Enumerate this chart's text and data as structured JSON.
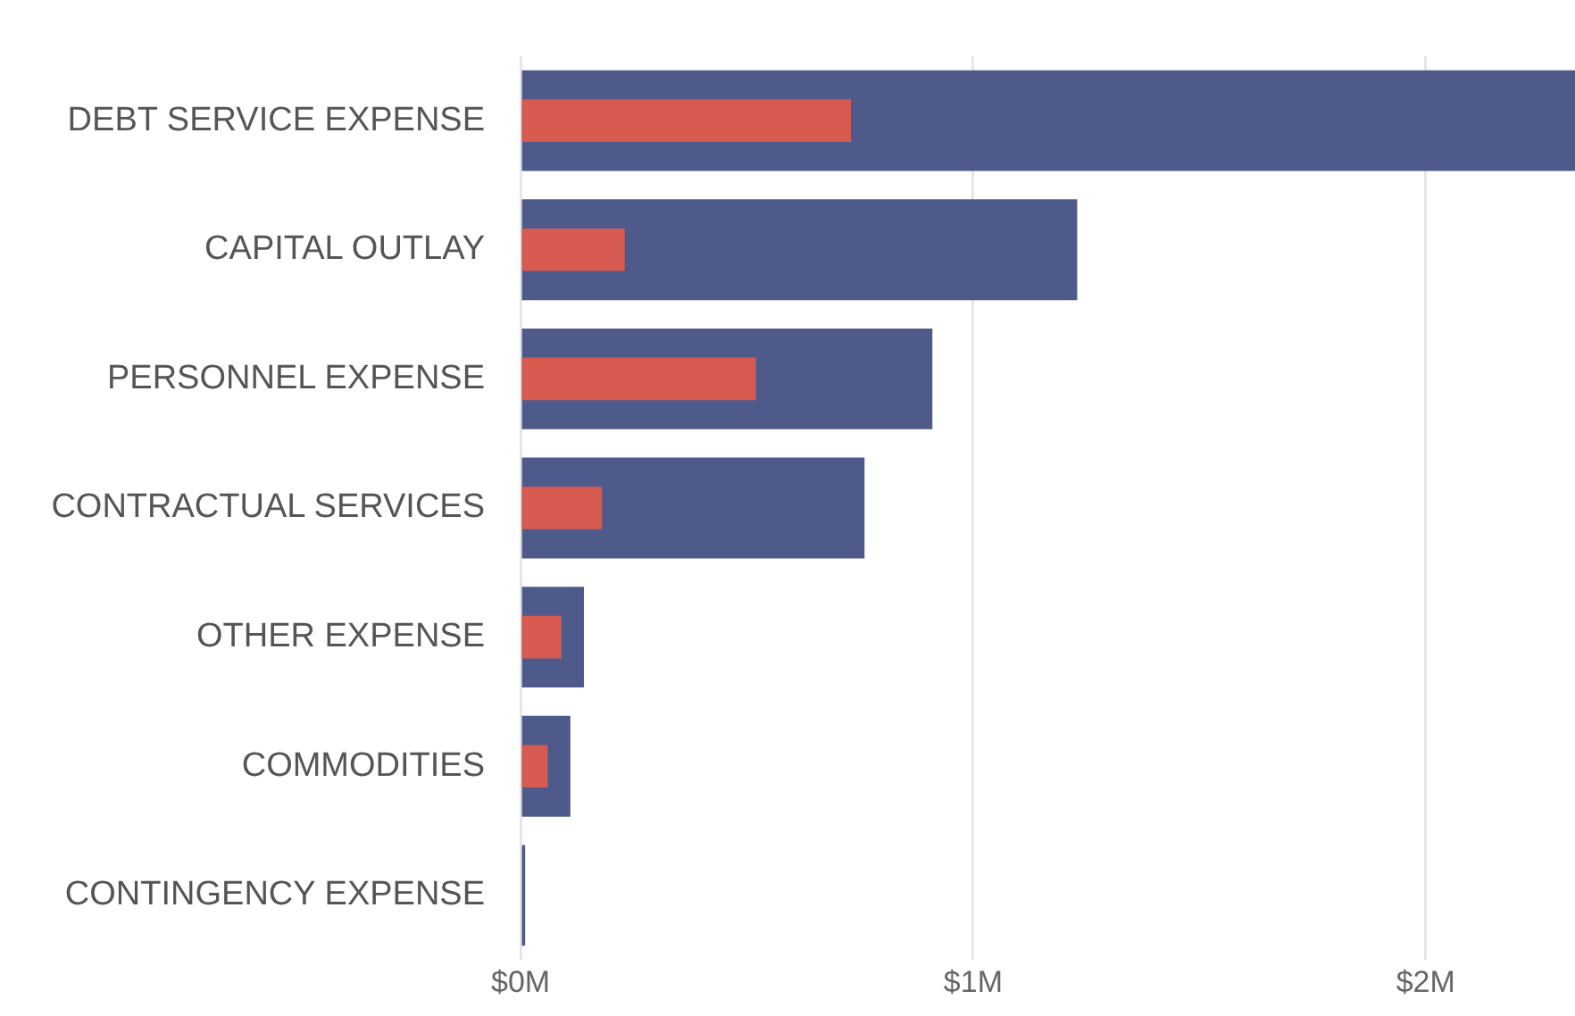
{
  "chart_data": {
    "type": "bar",
    "orientation": "horizontal",
    "categories": [
      "DEBT SERVICE EXPENSE",
      "CAPITAL OUTLAY",
      "PERSONNEL EXPENSE",
      "CONTRACTUAL SERVICES",
      "OTHER EXPENSE",
      "COMMODITIES",
      "CONTINGENCY EXPENSE"
    ],
    "series": [
      {
        "color": "#4e5a8a",
        "values": [
          2.33,
          1.23,
          0.91,
          0.76,
          0.14,
          0.11,
          0.01
        ]
      },
      {
        "color": "#d65a50",
        "values": [
          0.73,
          0.23,
          0.52,
          0.18,
          0.09,
          0.06,
          null
        ]
      }
    ],
    "xlim": [
      0,
      2.33
    ],
    "xticks": [
      {
        "value": 0,
        "label": "$0M"
      },
      {
        "value": 1,
        "label": "$1M"
      },
      {
        "value": 2,
        "label": "$2M"
      }
    ],
    "grid": "x",
    "legend": false
  }
}
